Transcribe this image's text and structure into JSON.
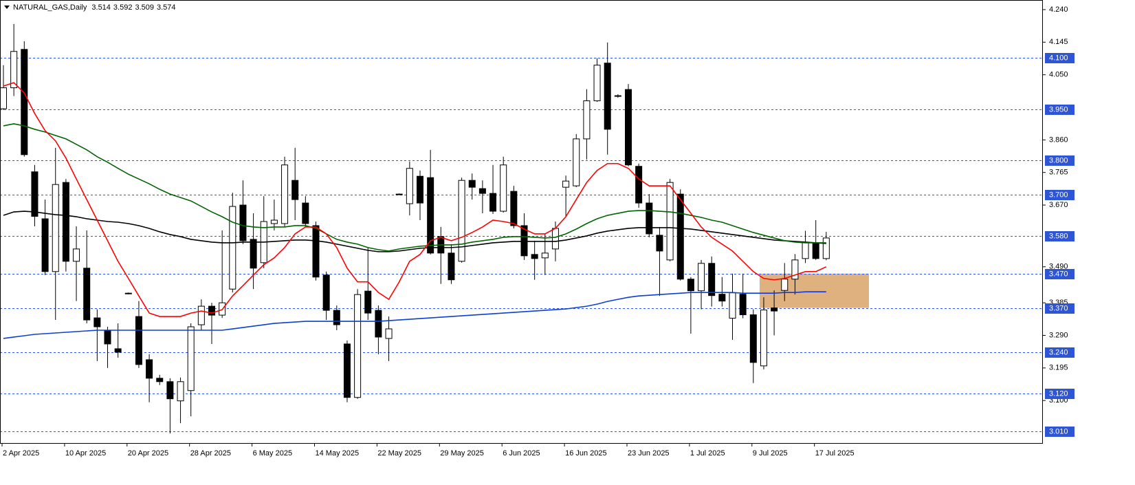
{
  "chart_data": {
    "type": "candlestick",
    "title": "NATURAL_GAS,Daily",
    "quote": [
      3.514,
      3.592,
      3.509,
      3.574
    ],
    "categories": [
      "2 Apr 2025",
      null,
      null,
      null,
      null,
      null,
      "10 Apr 2025",
      null,
      null,
      null,
      null,
      null,
      "20 Apr 2025",
      null,
      null,
      null,
      null,
      null,
      "28 Apr 2025",
      null,
      null,
      null,
      null,
      null,
      "6 May 2025",
      null,
      null,
      null,
      null,
      null,
      "14 May 2025",
      null,
      null,
      null,
      null,
      null,
      "22 May 2025",
      null,
      null,
      null,
      null,
      null,
      "29 May 2025",
      null,
      null,
      null,
      null,
      null,
      "6 Jun 2025",
      null,
      null,
      null,
      null,
      null,
      "16 Jun 2025",
      null,
      null,
      null,
      null,
      null,
      "23 Jun 2025",
      null,
      null,
      null,
      null,
      null,
      "1 Jul 2025",
      null,
      null,
      null,
      null,
      null,
      "9 Jul 2025",
      null,
      null,
      null,
      null,
      null,
      "17 Jul 2025",
      null
    ],
    "open": [
      3.951,
      4.012,
      4.124,
      3.767,
      3.63,
      3.476,
      3.736,
      3.506,
      3.486,
      3.341,
      3.305,
      3.251,
      3.413,
      3.345,
      3.219,
      3.165,
      3.155,
      3.099,
      3.129,
      3.321,
      3.375,
      3.349,
      3.425,
      3.67,
      3.57,
      3.502,
      3.616,
      3.616,
      3.742,
      3.676,
      3.61,
      3.466,
      3.363,
      3.265,
      3.109,
      3.419,
      3.363,
      3.281,
      3.702,
      3.674,
      3.754,
      3.75,
      3.578,
      3.53,
      3.506,
      3.742,
      3.718,
      3.704,
      3.652,
      3.71,
      3.61,
      3.526,
      3.516,
      3.542,
      3.722,
      3.726,
      3.863,
      3.974,
      4.084,
      3.989,
      4.007,
      3.783,
      3.676,
      3.582,
      3.51,
      3.702,
      3.454,
      3.42,
      3.5,
      3.41,
      3.34,
      3.41,
      3.35,
      3.201,
      3.37,
      3.421,
      3.454,
      3.514,
      3.56,
      3.514
    ],
    "high": [
      4.078,
      4.198,
      4.148,
      3.787,
      3.686,
      3.837,
      3.746,
      3.608,
      3.596,
      3.366,
      3.315,
      3.325,
      3.415,
      3.39,
      3.235,
      3.175,
      3.165,
      3.167,
      3.325,
      3.395,
      3.385,
      3.596,
      3.706,
      3.742,
      3.646,
      3.696,
      3.686,
      3.811,
      3.837,
      3.696,
      3.622,
      3.476,
      3.377,
      3.275,
      3.425,
      3.546,
      3.377,
      3.345,
      3.704,
      3.797,
      3.771,
      3.831,
      3.606,
      3.556,
      3.75,
      3.762,
      3.742,
      3.787,
      3.811,
      3.726,
      3.646,
      3.566,
      3.586,
      3.622,
      3.756,
      3.877,
      4.008,
      4.098,
      4.144,
      3.993,
      4.023,
      3.791,
      3.702,
      3.606,
      3.746,
      3.716,
      3.46,
      3.51,
      3.52,
      3.46,
      3.47,
      3.47,
      3.366,
      3.401,
      3.421,
      3.501,
      3.527,
      3.595,
      3.626,
      3.592
    ],
    "low": [
      3.947,
      3.988,
      3.811,
      3.608,
      3.466,
      3.335,
      3.476,
      3.39,
      3.325,
      3.215,
      3.195,
      3.225,
      3.41,
      3.195,
      3.095,
      3.145,
      3.004,
      3.034,
      3.054,
      3.305,
      3.265,
      3.341,
      3.415,
      3.556,
      3.425,
      3.486,
      3.596,
      3.606,
      3.626,
      3.606,
      3.45,
      3.335,
      3.305,
      3.095,
      3.105,
      3.335,
      3.235,
      3.215,
      3.7,
      3.64,
      3.626,
      3.526,
      3.44,
      3.44,
      3.502,
      3.686,
      3.646,
      3.644,
      3.648,
      3.602,
      3.51,
      3.452,
      3.466,
      3.506,
      3.636,
      3.722,
      3.803,
      3.971,
      3.817,
      3.983,
      3.783,
      3.662,
      3.576,
      3.405,
      3.506,
      3.45,
      3.295,
      3.366,
      3.374,
      3.374,
      3.277,
      3.34,
      3.151,
      3.191,
      3.29,
      3.39,
      3.409,
      3.501,
      3.51,
      3.509
    ],
    "close": [
      4.012,
      4.118,
      3.817,
      3.637,
      3.476,
      3.73,
      3.506,
      3.542,
      3.335,
      3.315,
      3.265,
      3.241,
      3.411,
      3.205,
      3.165,
      3.155,
      3.105,
      3.155,
      3.315,
      3.375,
      3.349,
      3.385,
      3.666,
      3.566,
      3.486,
      3.622,
      3.626,
      3.787,
      3.686,
      3.616,
      3.46,
      3.363,
      3.321,
      3.109,
      3.409,
      3.355,
      3.285,
      3.309,
      3.702,
      3.777,
      3.676,
      3.53,
      3.53,
      3.452,
      3.742,
      3.722,
      3.704,
      3.652,
      3.787,
      3.61,
      3.522,
      3.514,
      3.53,
      3.602,
      3.74,
      3.863,
      3.974,
      4.078,
      3.891,
      3.987,
      3.787,
      3.676,
      3.586,
      3.536,
      3.736,
      3.454,
      3.42,
      3.5,
      3.406,
      3.39,
      3.414,
      3.35,
      3.211,
      3.364,
      3.361,
      3.454,
      3.51,
      3.56,
      3.514,
      3.574
    ],
    "overlays": [
      {
        "color": "#0b3fd4",
        "values": [
          3.281,
          3.285,
          3.289,
          3.293,
          3.295,
          3.297,
          3.299,
          3.301,
          3.303,
          3.305,
          3.305,
          3.305,
          3.305,
          3.305,
          3.305,
          3.305,
          3.305,
          3.305,
          3.305,
          3.305,
          3.305,
          3.305,
          3.309,
          3.313,
          3.317,
          3.321,
          3.325,
          3.327,
          3.329,
          3.331,
          3.331,
          3.331,
          3.331,
          3.331,
          3.331,
          3.331,
          3.331,
          3.333,
          3.335,
          3.337,
          3.339,
          3.341,
          3.343,
          3.345,
          3.347,
          3.349,
          3.351,
          3.353,
          3.355,
          3.357,
          3.359,
          3.361,
          3.363,
          3.365,
          3.367,
          3.371,
          3.375,
          3.381,
          3.389,
          3.395,
          3.401,
          3.405,
          3.407,
          3.409,
          3.411,
          3.413,
          3.415,
          3.415,
          3.415,
          3.415,
          3.415,
          3.413,
          3.413,
          3.413,
          3.413,
          3.415,
          3.415,
          3.417,
          3.417,
          3.417
        ]
      },
      {
        "color": "#000000",
        "values": [
          3.64,
          3.65,
          3.652,
          3.65,
          3.646,
          3.642,
          3.64,
          3.636,
          3.63,
          3.626,
          3.622,
          3.62,
          3.616,
          3.61,
          3.602,
          3.592,
          3.584,
          3.578,
          3.57,
          3.566,
          3.562,
          3.56,
          3.56,
          3.562,
          3.562,
          3.562,
          3.564,
          3.566,
          3.568,
          3.568,
          3.566,
          3.562,
          3.556,
          3.55,
          3.544,
          3.538,
          3.534,
          3.534,
          3.536,
          3.54,
          3.544,
          3.546,
          3.546,
          3.546,
          3.548,
          3.552,
          3.556,
          3.56,
          3.562,
          3.564,
          3.564,
          3.564,
          3.564,
          3.564,
          3.568,
          3.574,
          3.58,
          3.588,
          3.594,
          3.598,
          3.602,
          3.604,
          3.604,
          3.604,
          3.604,
          3.602,
          3.6,
          3.596,
          3.592,
          3.588,
          3.584,
          3.58,
          3.576,
          3.572,
          3.568,
          3.566,
          3.564,
          3.562,
          3.56,
          3.558
        ]
      },
      {
        "color": "#006400",
        "values": [
          3.901,
          3.907,
          3.901,
          3.891,
          3.883,
          3.873,
          3.863,
          3.847,
          3.831,
          3.811,
          3.795,
          3.777,
          3.76,
          3.746,
          3.732,
          3.716,
          3.702,
          3.692,
          3.682,
          3.666,
          3.65,
          3.636,
          3.62,
          3.61,
          3.606,
          3.604,
          3.606,
          3.606,
          3.61,
          3.61,
          3.602,
          3.586,
          3.57,
          3.562,
          3.556,
          3.546,
          3.54,
          3.536,
          3.542,
          3.546,
          3.55,
          3.552,
          3.554,
          3.554,
          3.556,
          3.562,
          3.566,
          3.57,
          3.576,
          3.578,
          3.578,
          3.576,
          3.574,
          3.576,
          3.586,
          3.6,
          3.616,
          3.63,
          3.64,
          3.646,
          3.652,
          3.654,
          3.654,
          3.652,
          3.65,
          3.646,
          3.64,
          3.634,
          3.626,
          3.62,
          3.61,
          3.6,
          3.59,
          3.582,
          3.574,
          3.566,
          3.562,
          3.56,
          3.56,
          3.56
        ]
      },
      {
        "color": "#ff0000",
        "values": [
          4.017,
          4.027,
          3.997,
          3.937,
          3.887,
          3.857,
          3.807,
          3.746,
          3.686,
          3.626,
          3.566,
          3.506,
          3.456,
          3.405,
          3.355,
          3.345,
          3.345,
          3.345,
          3.355,
          3.361,
          3.355,
          3.365,
          3.405,
          3.435,
          3.466,
          3.496,
          3.516,
          3.546,
          3.586,
          3.606,
          3.606,
          3.586,
          3.546,
          3.486,
          3.446,
          3.446,
          3.415,
          3.395,
          3.446,
          3.506,
          3.526,
          3.566,
          3.576,
          3.566,
          3.576,
          3.59,
          3.606,
          3.626,
          3.622,
          3.616,
          3.6,
          3.586,
          3.586,
          3.602,
          3.636,
          3.686,
          3.736,
          3.771,
          3.791,
          3.791,
          3.777,
          3.746,
          3.726,
          3.726,
          3.726,
          3.686,
          3.646,
          3.606,
          3.576,
          3.556,
          3.536,
          3.506,
          3.476,
          3.456,
          3.452,
          3.456,
          3.466,
          3.476,
          3.476,
          3.49
        ]
      }
    ],
    "ylim": [
      2.974,
      4.268
    ],
    "yticks": [
      {
        "value": 4.24,
        "label": "4.240"
      },
      4.145,
      {
        "value": 4.05,
        "label": "4.050"
      },
      {
        "value": 3.86,
        "label": "3.860"
      },
      3.765,
      {
        "value": 3.67,
        "label": "3.670"
      },
      {
        "value": 3.49,
        "label": "3.490"
      },
      3.385,
      {
        "value": 3.29,
        "label": "3.290"
      },
      3.195,
      {
        "value": 3.1,
        "label": "3.100"
      }
    ],
    "levels": [
      {
        "value": 4.1,
        "label": "4.100"
      },
      {
        "value": 3.95,
        "label": "3.950"
      },
      {
        "value": 3.8,
        "label": "3.800"
      },
      {
        "value": 3.7,
        "label": "3.700"
      },
      {
        "value": 3.58,
        "label": "3.580"
      },
      {
        "value": 3.47,
        "label": "3.470"
      },
      {
        "value": 3.37,
        "label": "3.370"
      },
      {
        "value": 3.24,
        "label": "3.240"
      },
      {
        "value": 3.12,
        "label": "3.120"
      },
      {
        "value": 3.01,
        "label": "3.010"
      }
    ],
    "level_color": "#2e55d6",
    "zone": [
      3.37,
      3.47
    ],
    "zone_color": "#dfb17f"
  }
}
